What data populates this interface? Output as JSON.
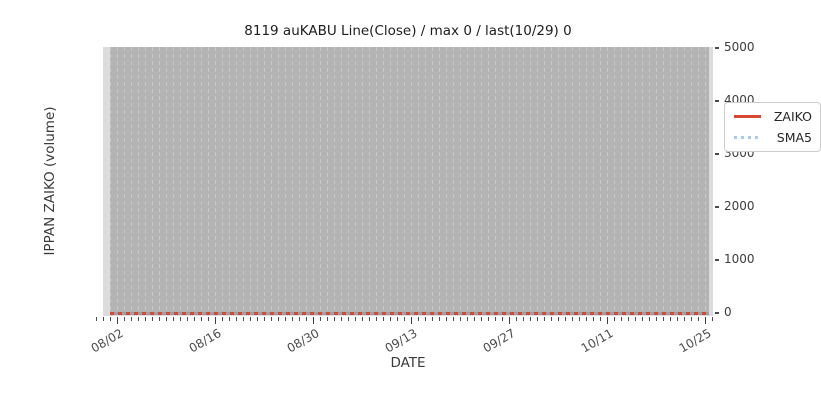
{
  "title": "8119 auKABU Line(Close) / max 0 / last(10/29) 0",
  "axes": {
    "x_label": "DATE",
    "y_label": "IPPAN ZAIKO (volume)",
    "x_ticks": [
      "08/02",
      "08/16",
      "08/30",
      "09/13",
      "09/27",
      "10/11",
      "10/25"
    ],
    "y_ticks": [
      0,
      1000,
      2000,
      3000,
      4000,
      5000
    ]
  },
  "legend": {
    "position": "upper right",
    "items": [
      {
        "label": "ZAIKO",
        "color": "#d8472f",
        "style": "solid"
      },
      {
        "label": "SMA5",
        "color": "#a9cbe8",
        "style": "dotted"
      }
    ]
  },
  "colors": {
    "plot_background": "#dcdcdc",
    "data_band_background": "#b4b4b4",
    "gridline": "#c9c9c9",
    "zaiko_line": "#d8472f",
    "sma5_line": "#a9cbe8",
    "text": "#3a3a3a"
  },
  "chart_data": {
    "type": "line",
    "title": "8119 auKABU Line(Close) / max 0 / last(10/29) 0",
    "xlabel": "DATE",
    "ylabel": "IPPAN ZAIKO (volume)",
    "ylim": [
      0,
      5000
    ],
    "y_tick_values": [
      0,
      1000,
      2000,
      3000,
      4000,
      5000
    ],
    "x_tick_labels": [
      "08/02",
      "08/16",
      "08/30",
      "09/13",
      "09/27",
      "10/11",
      "10/25"
    ],
    "x_range": [
      "08/01",
      "10/29"
    ],
    "x_frequency": "daily",
    "grid": "vertical dashed gridline at every day, no horizontal gridlines",
    "legend_position": "upper right",
    "series": [
      {
        "name": "ZAIKO",
        "style": "solid",
        "color": "#d8472f",
        "constant_value": 0,
        "max": 0,
        "last_date": "10/29",
        "last_value": 0,
        "note": "flat at 0 for every date from 08/01 through 10/29"
      },
      {
        "name": "SMA5",
        "style": "dotted",
        "color": "#a9cbe8",
        "constant_value": 0,
        "note": "flat at 0 for every date (5-day SMA of a constant-zero series)"
      }
    ]
  }
}
